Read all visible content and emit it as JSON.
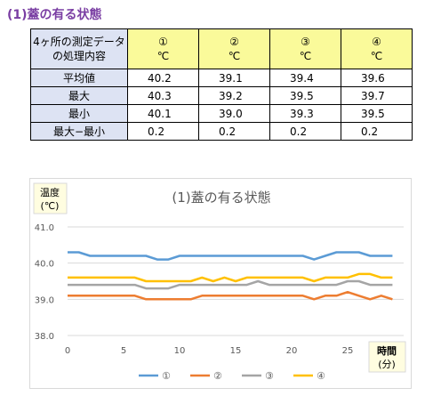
{
  "heading": "(1)蓋の有る状態",
  "table": {
    "corner_line1": "4ヶ所の測定データ",
    "corner_line2": "の処理内容",
    "columns": [
      {
        "num": "①",
        "unit": "℃"
      },
      {
        "num": "②",
        "unit": "℃"
      },
      {
        "num": "③",
        "unit": "℃"
      },
      {
        "num": "④",
        "unit": "℃"
      }
    ],
    "rows": [
      {
        "label": "平均値",
        "values": [
          "40.2",
          "39.1",
          "39.4",
          "39.6"
        ]
      },
      {
        "label": "最大",
        "values": [
          "40.3",
          "39.2",
          "39.5",
          "39.7"
        ]
      },
      {
        "label": "最小",
        "values": [
          "40.1",
          "39.0",
          "39.3",
          "39.5"
        ]
      },
      {
        "label": "最大−最小",
        "values": [
          "0.2",
          "0.2",
          "0.2",
          "0.2"
        ]
      }
    ]
  },
  "chart_data": {
    "type": "line",
    "title": "(1)蓋の有る状態",
    "ylabel_line1": "温度",
    "ylabel_line2": "(℃)",
    "xlabel_line1": "時間",
    "xlabel_line2": "(分)",
    "xlim": [
      0,
      30
    ],
    "ylim": [
      38.0,
      41.0
    ],
    "x_ticks": [
      0,
      5,
      10,
      15,
      20,
      25
    ],
    "y_ticks": [
      38.0,
      39.0,
      40.0,
      41.0
    ],
    "y_tick_labels": [
      "38.0",
      "39.0",
      "40.0",
      "41.0"
    ],
    "grid": true,
    "legend_position": "bottom",
    "x": [
      0,
      1,
      2,
      3,
      4,
      5,
      6,
      7,
      8,
      9,
      10,
      11,
      12,
      13,
      14,
      15,
      16,
      17,
      18,
      19,
      20,
      21,
      22,
      23,
      24,
      25,
      26,
      27,
      28,
      29
    ],
    "series": [
      {
        "name": "①",
        "color": "#5b9bd5",
        "values": [
          40.3,
          40.3,
          40.2,
          40.2,
          40.2,
          40.2,
          40.2,
          40.2,
          40.1,
          40.1,
          40.2,
          40.2,
          40.2,
          40.2,
          40.2,
          40.2,
          40.2,
          40.2,
          40.2,
          40.2,
          40.2,
          40.2,
          40.1,
          40.2,
          40.3,
          40.3,
          40.3,
          40.2,
          40.2,
          40.2
        ]
      },
      {
        "name": "②",
        "color": "#ed7d31",
        "values": [
          39.1,
          39.1,
          39.1,
          39.1,
          39.1,
          39.1,
          39.1,
          39.0,
          39.0,
          39.0,
          39.0,
          39.0,
          39.1,
          39.1,
          39.1,
          39.1,
          39.1,
          39.1,
          39.1,
          39.1,
          39.1,
          39.1,
          39.0,
          39.1,
          39.1,
          39.2,
          39.1,
          39.0,
          39.1,
          39.0
        ]
      },
      {
        "name": "③",
        "color": "#a5a5a5",
        "values": [
          39.4,
          39.4,
          39.4,
          39.4,
          39.4,
          39.4,
          39.4,
          39.3,
          39.3,
          39.3,
          39.4,
          39.4,
          39.4,
          39.4,
          39.4,
          39.4,
          39.4,
          39.5,
          39.4,
          39.4,
          39.4,
          39.4,
          39.4,
          39.4,
          39.4,
          39.5,
          39.5,
          39.4,
          39.4,
          39.4
        ]
      },
      {
        "name": "④",
        "color": "#ffc000",
        "values": [
          39.6,
          39.6,
          39.6,
          39.6,
          39.6,
          39.6,
          39.6,
          39.5,
          39.5,
          39.5,
          39.5,
          39.5,
          39.6,
          39.5,
          39.6,
          39.5,
          39.6,
          39.6,
          39.6,
          39.6,
          39.6,
          39.6,
          39.5,
          39.6,
          39.6,
          39.6,
          39.7,
          39.7,
          39.6,
          39.6
        ]
      }
    ]
  }
}
